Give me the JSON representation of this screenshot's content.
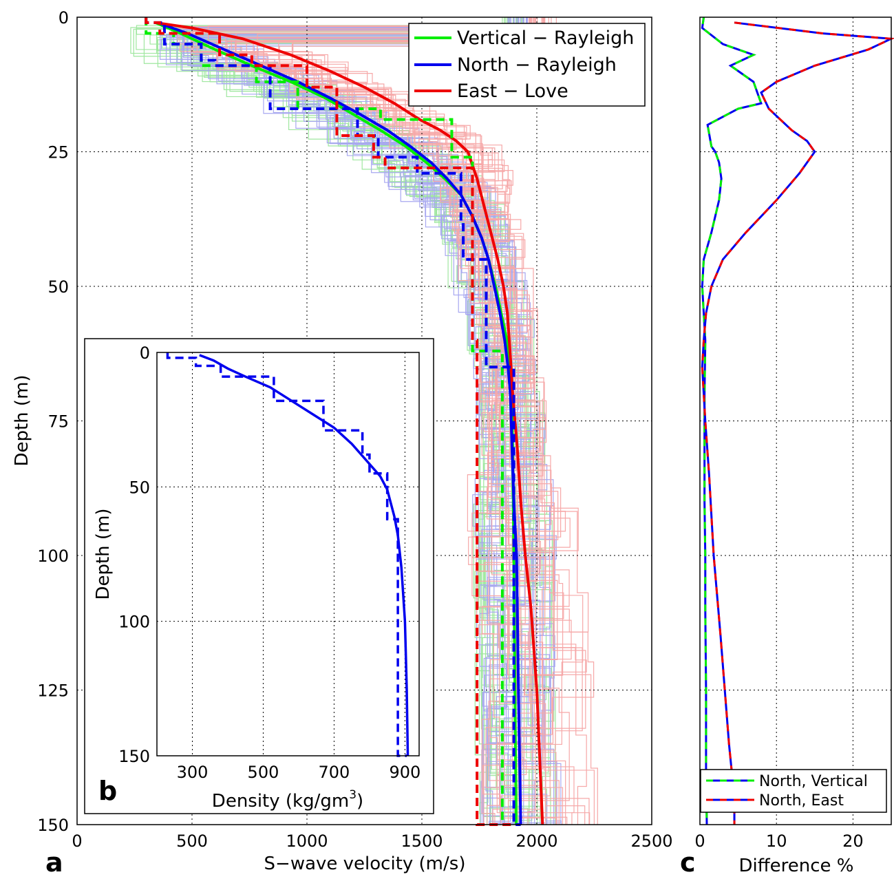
{
  "colors": {
    "vertical": "#00ee00",
    "north": "#0000ee",
    "east": "#ee0000",
    "vertical_light": "#9fe79f",
    "north_light": "#a8a8f0",
    "east_light": "#f6a8a8"
  },
  "chart_data": [
    {
      "panel": "a",
      "type": "line",
      "xlabel": "S−wave velocity (m/s)",
      "ylabel": "Depth (m)",
      "xlim": [
        0,
        2500
      ],
      "ylim": [
        0,
        150
      ],
      "y_reversed": true,
      "xticks": [
        "0",
        "500",
        "1000",
        "1500",
        "2000",
        "2500"
      ],
      "yticks": [
        "0",
        "25",
        "50",
        "75",
        "100",
        "125",
        "150"
      ],
      "grid": "dotted",
      "legend_position": "top-right",
      "legend": [
        "Vertical − Rayleigh",
        "North − Rayleigh",
        "East − Love"
      ],
      "series": [
        {
          "name": "Vertical − Rayleigh",
          "color_key": "vertical",
          "style": "solid",
          "points": [
            [
              340,
              1
            ],
            [
              450,
              3
            ],
            [
              600,
              6
            ],
            [
              760,
              9
            ],
            [
              930,
              12
            ],
            [
              1080,
              15
            ],
            [
              1200,
              18
            ],
            [
              1320,
              21
            ],
            [
              1430,
              24
            ],
            [
              1520,
              27
            ],
            [
              1600,
              30
            ],
            [
              1670,
              33
            ],
            [
              1720,
              37
            ],
            [
              1760,
              41
            ],
            [
              1790,
              45
            ],
            [
              1820,
              50
            ],
            [
              1845,
              55
            ],
            [
              1870,
              60
            ],
            [
              1885,
              65
            ],
            [
              1890,
              70
            ],
            [
              1895,
              80
            ],
            [
              1900,
              100
            ],
            [
              1905,
              125
            ],
            [
              1910,
              150
            ]
          ]
        },
        {
          "name": "North − Rayleigh",
          "color_key": "north",
          "style": "solid",
          "points": [
            [
              350,
              1
            ],
            [
              480,
              3
            ],
            [
              640,
              6
            ],
            [
              800,
              9
            ],
            [
              960,
              12
            ],
            [
              1100,
              15
            ],
            [
              1230,
              18
            ],
            [
              1350,
              21
            ],
            [
              1450,
              24
            ],
            [
              1540,
              27
            ],
            [
              1610,
              30
            ],
            [
              1670,
              33
            ],
            [
              1720,
              37
            ],
            [
              1760,
              41
            ],
            [
              1790,
              45
            ],
            [
              1815,
              50
            ],
            [
              1840,
              55
            ],
            [
              1860,
              60
            ],
            [
              1875,
              65
            ],
            [
              1885,
              70
            ],
            [
              1892,
              80
            ],
            [
              1900,
              90
            ],
            [
              1912,
              100
            ],
            [
              1920,
              125
            ],
            [
              1930,
              150
            ]
          ]
        },
        {
          "name": "East − Love",
          "color_key": "east",
          "style": "solid",
          "points": [
            [
              340,
              1
            ],
            [
              500,
              2
            ],
            [
              720,
              4
            ],
            [
              930,
              7
            ],
            [
              1100,
              10
            ],
            [
              1250,
              13
            ],
            [
              1380,
              16
            ],
            [
              1490,
              19
            ],
            [
              1580,
              21
            ],
            [
              1650,
              23
            ],
            [
              1700,
              25
            ],
            [
              1740,
              30
            ],
            [
              1770,
              35
            ],
            [
              1800,
              40
            ],
            [
              1830,
              45
            ],
            [
              1855,
              50
            ],
            [
              1872,
              55
            ],
            [
              1880,
              60
            ],
            [
              1888,
              65
            ],
            [
              1895,
              70
            ],
            [
              1905,
              75
            ],
            [
              1915,
              80
            ],
            [
              1930,
              90
            ],
            [
              1950,
              100
            ],
            [
              1975,
              110
            ],
            [
              2000,
              125
            ],
            [
              2015,
              140
            ],
            [
              2025,
              150
            ]
          ]
        },
        {
          "name": "Vertical − Rayleigh (layered)",
          "color_key": "vertical",
          "style": "dashed",
          "steps": [
            [
              300,
              0
            ],
            [
              420,
              3
            ],
            [
              540,
              5
            ],
            [
              780,
              9
            ],
            [
              960,
              12
            ],
            [
              1320,
              17
            ],
            [
              1630,
              19
            ],
            [
              1720,
              26
            ],
            [
              1720,
              60
            ],
            [
              1850,
              62
            ],
            [
              1900,
              150
            ]
          ]
        },
        {
          "name": "North − Rayleigh (layered)",
          "color_key": "north",
          "style": "dashed",
          "steps": [
            [
              300,
              0
            ],
            [
              380,
              1
            ],
            [
              540,
              5
            ],
            [
              600,
              8
            ],
            [
              840,
              9
            ],
            [
              1220,
              17
            ],
            [
              1310,
              22
            ],
            [
              1480,
              26
            ],
            [
              1670,
              29
            ],
            [
              1680,
              38
            ],
            [
              1780,
              45
            ],
            [
              1900,
              65
            ],
            [
              1930,
              150
            ]
          ]
        },
        {
          "name": "East − Love (layered)",
          "color_key": "east",
          "style": "dashed",
          "steps": [
            [
              300,
              0
            ],
            [
              360,
              1
            ],
            [
              620,
              3
            ],
            [
              760,
              7
            ],
            [
              1000,
              9
            ],
            [
              1130,
              13
            ],
            [
              1290,
              22
            ],
            [
              1340,
              26
            ],
            [
              1720,
              28
            ],
            [
              1740,
              60
            ],
            [
              1900,
              150
            ]
          ]
        }
      ]
    },
    {
      "panel": "b",
      "type": "line",
      "xlabel": "Density (kg/gm",
      "xlabel_sup": "3",
      "xlabel_close": ")",
      "ylabel": "Depth (m)",
      "xlim": [
        200,
        940
      ],
      "ylim": [
        0,
        150
      ],
      "y_reversed": true,
      "xticks": [
        "300",
        "500",
        "700",
        "900"
      ],
      "yticks": [
        "0",
        "50",
        "100",
        "150"
      ],
      "grid": "dotted",
      "series": [
        {
          "name": "",
          "color_key": "north",
          "style": "solid",
          "points": [
            [
              320,
              1
            ],
            [
              360,
              3
            ],
            [
              400,
              6
            ],
            [
              450,
              9
            ],
            [
              520,
              13
            ],
            [
              580,
              18
            ],
            [
              640,
              23
            ],
            [
              700,
              28
            ],
            [
              750,
              34
            ],
            [
              790,
              40
            ],
            [
              830,
              46
            ],
            [
              850,
              51
            ],
            [
              860,
              56
            ],
            [
              870,
              61
            ],
            [
              880,
              68
            ],
            [
              890,
              80
            ],
            [
              900,
              100
            ],
            [
              905,
              125
            ],
            [
              908,
              150
            ]
          ]
        },
        {
          "name": "",
          "color_key": "north",
          "style": "dashed",
          "steps": [
            [
              230,
              0
            ],
            [
              310,
              2
            ],
            [
              380,
              5
            ],
            [
              530,
              9
            ],
            [
              670,
              18
            ],
            [
              780,
              29
            ],
            [
              800,
              38
            ],
            [
              850,
              45
            ],
            [
              850,
              54
            ],
            [
              880,
              62
            ],
            [
              905,
              150
            ]
          ]
        }
      ]
    },
    {
      "panel": "c",
      "type": "line",
      "xlabel": "Difference %",
      "xlim": [
        0,
        25
      ],
      "ylim": [
        0,
        150
      ],
      "y_reversed": true,
      "xticks": [
        "0",
        "10",
        "20"
      ],
      "grid": "dotted",
      "legend_position": "bottom-right",
      "legend": [
        "North, Vertical",
        "North, East"
      ],
      "series": [
        {
          "name": "North, Vertical",
          "colors": [
            "north",
            "vertical"
          ],
          "style": "two-tone dashed",
          "points": [
            [
              0.5,
              0
            ],
            [
              0.3,
              2
            ],
            [
              3,
              5
            ],
            [
              7,
              7
            ],
            [
              4,
              9
            ],
            [
              7,
              12
            ],
            [
              8,
              16
            ],
            [
              5,
              17
            ],
            [
              1,
              20
            ],
            [
              1.5,
              24
            ],
            [
              2,
              25
            ],
            [
              2.5,
              27
            ],
            [
              2.8,
              30
            ],
            [
              2.5,
              34
            ],
            [
              1.5,
              40
            ],
            [
              0.5,
              45
            ],
            [
              0.3,
              50
            ],
            [
              0.7,
              60
            ],
            [
              0.6,
              70
            ],
            [
              0.6,
              80
            ],
            [
              0.6,
              90
            ],
            [
              0.7,
              100
            ],
            [
              0.7,
              110
            ],
            [
              0.8,
              125
            ],
            [
              0.8,
              140
            ],
            [
              0.9,
              150
            ]
          ]
        },
        {
          "name": "North, East",
          "colors": [
            "north",
            "east"
          ],
          "style": "two-tone dashed",
          "points": [
            [
              4.5,
              1
            ],
            [
              16,
              3
            ],
            [
              25,
              4
            ],
            [
              22,
              6
            ],
            [
              15,
              9
            ],
            [
              10,
              12
            ],
            [
              8,
              14
            ],
            [
              9,
              17
            ],
            [
              12,
              21
            ],
            [
              14,
              23
            ],
            [
              15,
              25
            ],
            [
              13,
              29
            ],
            [
              10,
              34
            ],
            [
              6,
              40
            ],
            [
              3,
              45
            ],
            [
              1.5,
              50
            ],
            [
              0.8,
              55
            ],
            [
              0.5,
              60
            ],
            [
              0.3,
              65
            ],
            [
              0.5,
              70
            ],
            [
              0.7,
              75
            ],
            [
              1.2,
              85
            ],
            [
              1.8,
              100
            ],
            [
              2.7,
              115
            ],
            [
              3.8,
              135
            ],
            [
              4.5,
              145
            ],
            [
              4.5,
              150
            ]
          ]
        }
      ]
    }
  ],
  "panel_letters": {
    "a": "a",
    "b": "b",
    "c": "c"
  }
}
